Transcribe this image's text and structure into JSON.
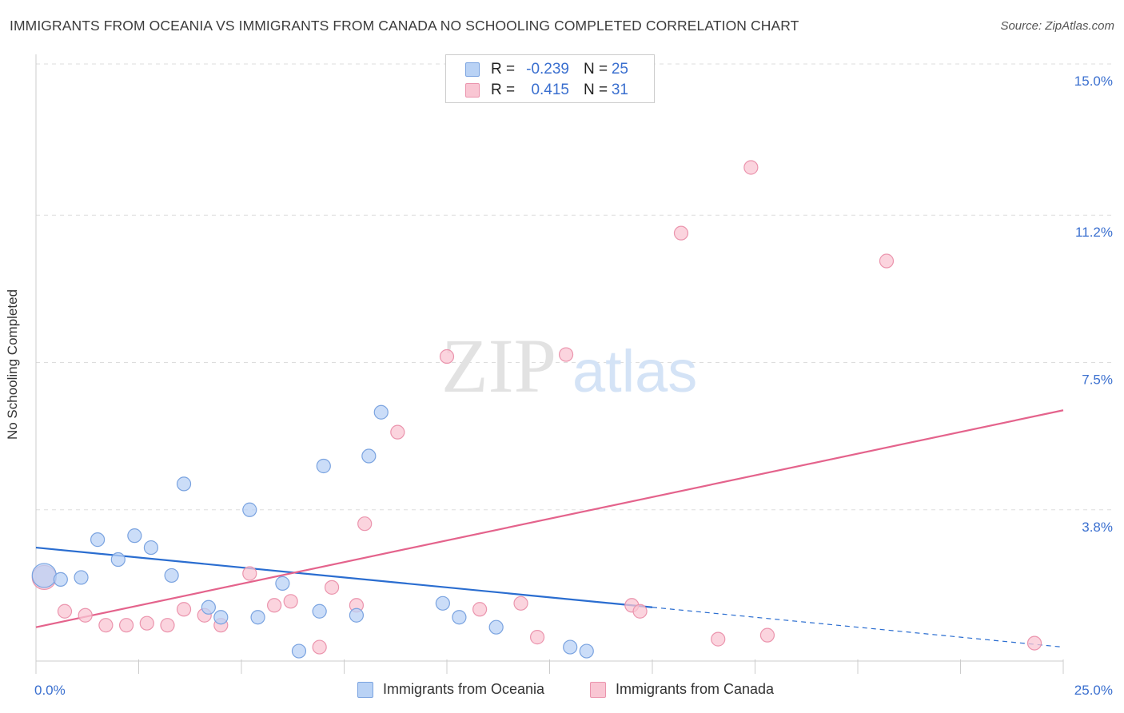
{
  "title": "IMMIGRANTS FROM OCEANIA VS IMMIGRANTS FROM CANADA NO SCHOOLING COMPLETED CORRELATION CHART",
  "source": "Source: ZipAtlas.com",
  "watermark": {
    "zip": "ZIP",
    "atlas": "atlas"
  },
  "legend": {
    "r_label": "R =",
    "n_label": "N =",
    "rows": [
      {
        "r": "-0.239",
        "n": "25"
      },
      {
        "r": "0.415",
        "n": "31"
      }
    ]
  },
  "colors": {
    "oceania_fill": "#b9d2f5",
    "oceania_stroke": "#7aa3e0",
    "oceania_line": "#2a6dd0",
    "canada_fill": "#f9c6d3",
    "canada_stroke": "#eb94ad",
    "canada_line": "#e4638c",
    "tick_text": "#3a6fcf",
    "grid": "#dddddd"
  },
  "chart_data": {
    "type": "scatter",
    "title": "IMMIGRANTS FROM OCEANIA VS IMMIGRANTS FROM CANADA NO SCHOOLING COMPLETED CORRELATION CHART",
    "xlabel": "",
    "ylabel": "No Schooling Completed",
    "xlim": [
      0,
      25
    ],
    "ylim": [
      0,
      15
    ],
    "x_tick_labels": [
      "0.0%",
      "25.0%"
    ],
    "y_ticks": [
      3.8,
      7.5,
      11.2,
      15.0
    ],
    "y_tick_labels": [
      "3.8%",
      "7.5%",
      "11.2%",
      "15.0%"
    ],
    "series": [
      {
        "name": "Immigrants from Oceania",
        "r": -0.239,
        "n": 25,
        "points": [
          {
            "x": 0.2,
            "y": 2.15,
            "big": true
          },
          {
            "x": 0.6,
            "y": 2.05
          },
          {
            "x": 1.1,
            "y": 2.1
          },
          {
            "x": 1.5,
            "y": 3.05
          },
          {
            "x": 2.0,
            "y": 2.55
          },
          {
            "x": 2.4,
            "y": 3.15
          },
          {
            "x": 2.8,
            "y": 2.85
          },
          {
            "x": 3.3,
            "y": 2.15
          },
          {
            "x": 3.6,
            "y": 4.45
          },
          {
            "x": 4.2,
            "y": 1.35
          },
          {
            "x": 4.5,
            "y": 1.1
          },
          {
            "x": 5.2,
            "y": 3.8
          },
          {
            "x": 5.4,
            "y": 1.1
          },
          {
            "x": 6.0,
            "y": 1.95
          },
          {
            "x": 6.4,
            "y": 0.25
          },
          {
            "x": 6.9,
            "y": 1.25
          },
          {
            "x": 7.0,
            "y": 4.9
          },
          {
            "x": 7.8,
            "y": 1.15
          },
          {
            "x": 8.1,
            "y": 5.15
          },
          {
            "x": 8.4,
            "y": 6.25
          },
          {
            "x": 9.9,
            "y": 1.45
          },
          {
            "x": 10.3,
            "y": 1.1
          },
          {
            "x": 11.2,
            "y": 0.85
          },
          {
            "x": 13.0,
            "y": 0.35
          },
          {
            "x": 13.4,
            "y": 0.25
          }
        ]
      },
      {
        "name": "Immigrants from Canada",
        "r": 0.415,
        "n": 31,
        "points": [
          {
            "x": 0.2,
            "y": 2.1,
            "big": true
          },
          {
            "x": 0.7,
            "y": 1.25
          },
          {
            "x": 1.2,
            "y": 1.15
          },
          {
            "x": 1.7,
            "y": 0.9
          },
          {
            "x": 2.2,
            "y": 0.9
          },
          {
            "x": 2.7,
            "y": 0.95
          },
          {
            "x": 3.2,
            "y": 0.9
          },
          {
            "x": 3.6,
            "y": 1.3
          },
          {
            "x": 4.1,
            "y": 1.15
          },
          {
            "x": 4.5,
            "y": 0.9
          },
          {
            "x": 5.2,
            "y": 2.2
          },
          {
            "x": 5.8,
            "y": 1.4
          },
          {
            "x": 6.2,
            "y": 1.5
          },
          {
            "x": 6.9,
            "y": 0.35
          },
          {
            "x": 7.2,
            "y": 1.85
          },
          {
            "x": 7.8,
            "y": 1.4
          },
          {
            "x": 8.0,
            "y": 3.45
          },
          {
            "x": 8.8,
            "y": 5.75
          },
          {
            "x": 10.0,
            "y": 7.65
          },
          {
            "x": 10.8,
            "y": 1.3
          },
          {
            "x": 11.8,
            "y": 1.45
          },
          {
            "x": 12.2,
            "y": 0.6
          },
          {
            "x": 12.9,
            "y": 7.7
          },
          {
            "x": 14.5,
            "y": 1.4
          },
          {
            "x": 14.7,
            "y": 1.25
          },
          {
            "x": 15.7,
            "y": 10.75
          },
          {
            "x": 16.6,
            "y": 0.55
          },
          {
            "x": 17.4,
            "y": 12.4
          },
          {
            "x": 17.8,
            "y": 0.65
          },
          {
            "x": 20.7,
            "y": 10.05
          },
          {
            "x": 24.3,
            "y": 0.45
          }
        ]
      }
    ],
    "trendlines": [
      {
        "series": "Immigrants from Oceania",
        "x0": 0,
        "y0": 2.85,
        "x1": 15.0,
        "y1": 1.35,
        "dashed_to_x": 25.0,
        "dashed_to_y": 0.35
      },
      {
        "series": "Immigrants from Canada",
        "x0": 0,
        "y0": 0.85,
        "x1": 25.0,
        "y1": 6.3
      }
    ],
    "legend_position": "top-center"
  }
}
